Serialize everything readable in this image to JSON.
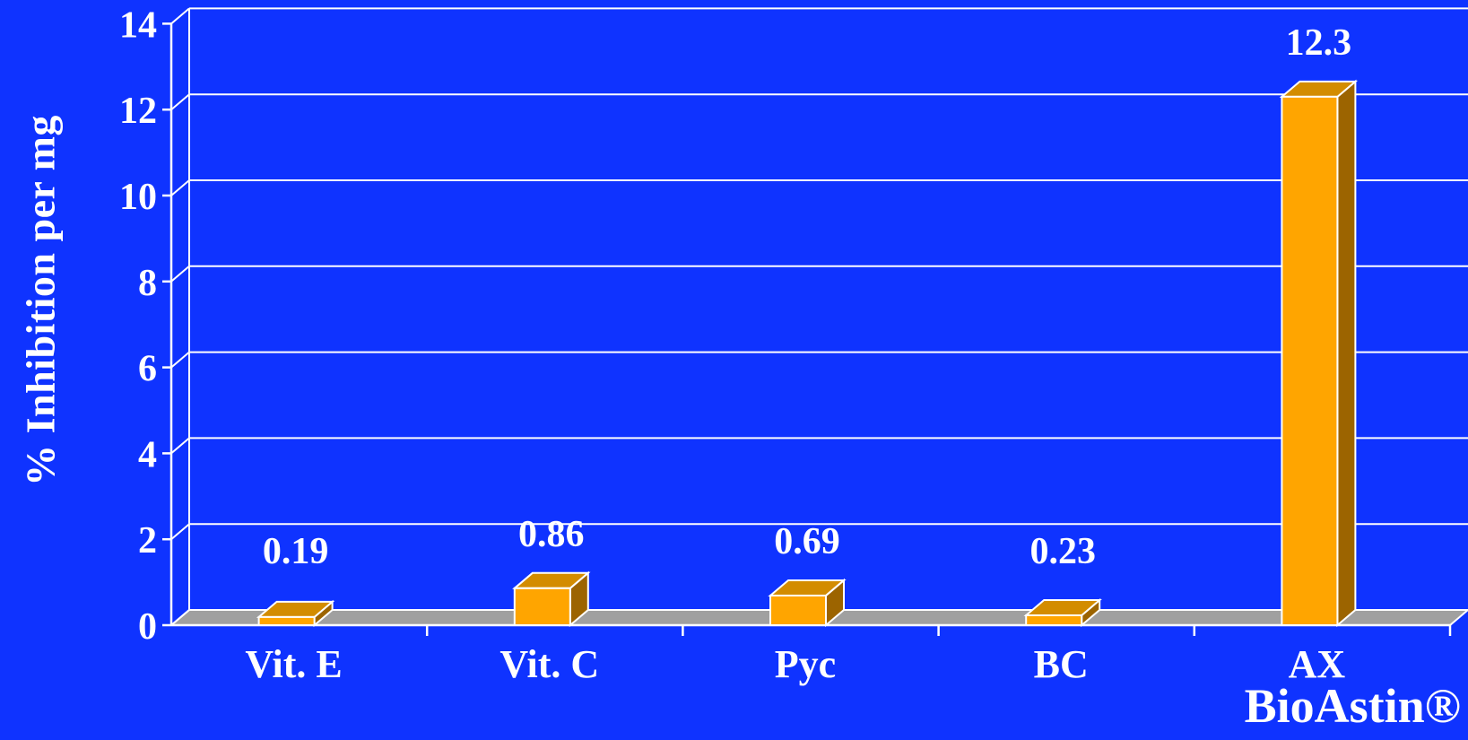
{
  "chart_data": {
    "type": "bar",
    "categories": [
      "Vit. E",
      "Vit. C",
      "Pyc",
      "BC",
      "AX"
    ],
    "values": [
      0.19,
      0.86,
      0.69,
      0.23,
      12.3
    ],
    "data_labels": [
      "0.19",
      "0.86",
      "0.69",
      "0.23",
      "12.3"
    ],
    "ylabel": "% Inhibition per mg",
    "xlabel": "",
    "ylim": [
      0,
      14
    ],
    "yticks": [
      "0",
      "2",
      "4",
      "6",
      "8",
      "10",
      "12",
      "14"
    ],
    "ytick_values": [
      0,
      2,
      4,
      6,
      8,
      10,
      12,
      14
    ],
    "grid": true,
    "three_d": true,
    "colors": {
      "background": "#0f33ff",
      "bar_front": "#ffa500",
      "bar_top": "#d38c00",
      "bar_side": "#9c6400",
      "floor": "#a0a0a0",
      "grid": "#ffffff",
      "text": "#ffffff"
    }
  },
  "annotation": "BioAstin®"
}
